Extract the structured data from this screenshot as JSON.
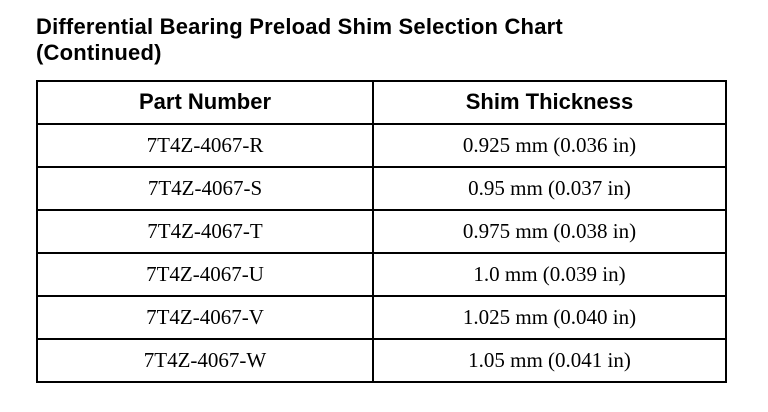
{
  "page": {
    "title": "Differential Bearing Preload Shim Selection Chart (Continued)"
  },
  "table": {
    "headers": {
      "part_number": "Part Number",
      "shim_thickness": "Shim Thickness"
    },
    "rows": [
      {
        "part_number": "7T4Z-4067-R",
        "shim_thickness": "0.925 mm (0.036 in)"
      },
      {
        "part_number": "7T4Z-4067-S",
        "shim_thickness": "0.95 mm (0.037 in)"
      },
      {
        "part_number": "7T4Z-4067-T",
        "shim_thickness": "0.975 mm (0.038 in)"
      },
      {
        "part_number": "7T4Z-4067-U",
        "shim_thickness": "1.0 mm (0.039 in)"
      },
      {
        "part_number": "7T4Z-4067-V",
        "shim_thickness": "1.025 mm (0.040 in)"
      },
      {
        "part_number": "7T4Z-4067-W",
        "shim_thickness": "1.05 mm (0.041 in)"
      }
    ]
  }
}
